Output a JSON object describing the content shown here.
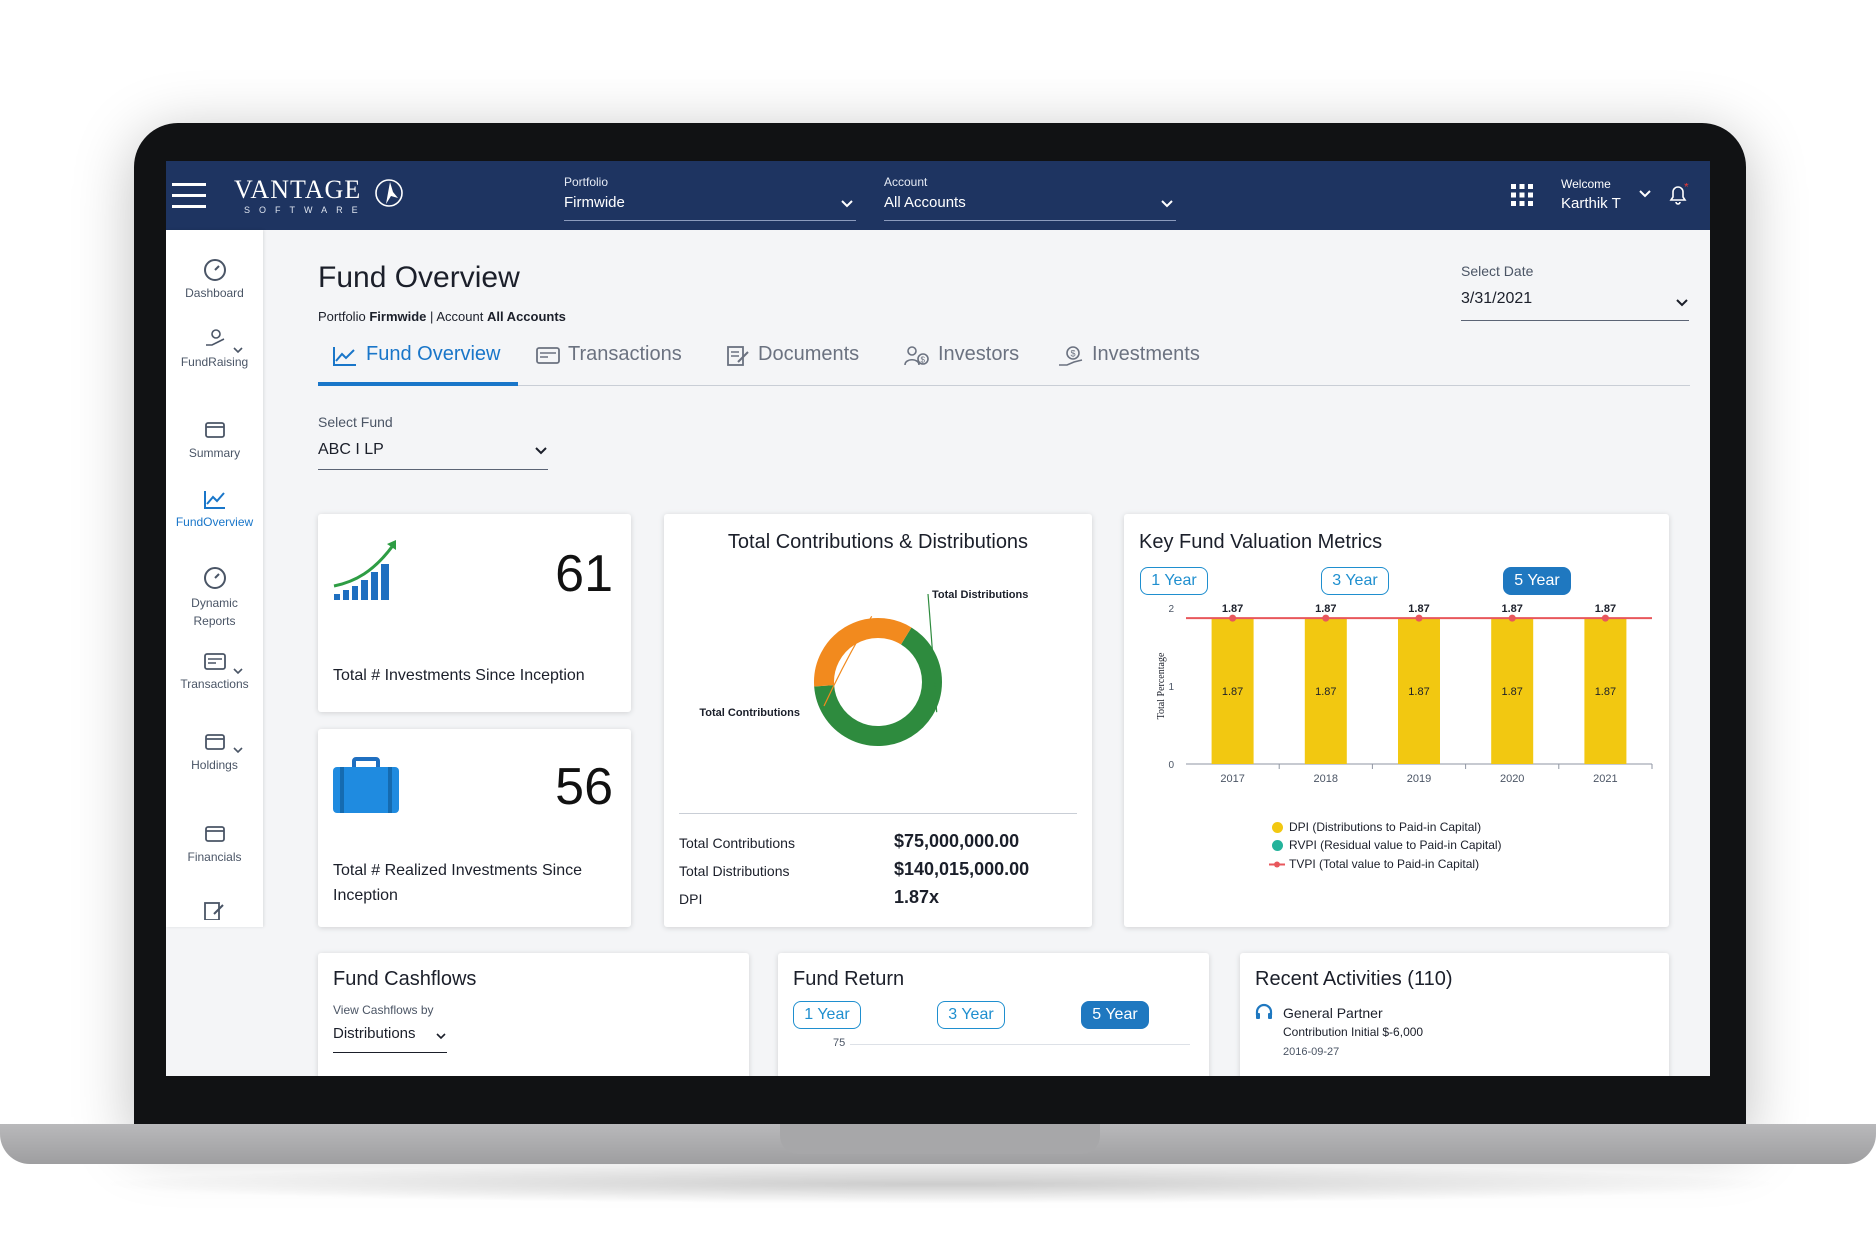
{
  "brand": {
    "name": "VANTAGE",
    "sub": "SOFTWARE"
  },
  "topbar": {
    "portfolio_label": "Portfolio",
    "portfolio_value": "Firmwide",
    "account_label": "Account",
    "account_value": "All Accounts",
    "welcome_label": "Welcome",
    "user_name": "Karthik T"
  },
  "sidebar": {
    "items": [
      {
        "label": "Dashboard",
        "icon": "gauge-icon"
      },
      {
        "label": "FundRaising",
        "icon": "hand-money-icon"
      },
      {
        "label": "Summary",
        "icon": "window-stack-icon"
      },
      {
        "label": "FundOverview",
        "icon": "trend-chart-icon"
      },
      {
        "label": "Dynamic",
        "label2": "Reports",
        "icon": "gauge-icon"
      },
      {
        "label": "Transactions",
        "icon": "card-icon"
      },
      {
        "label": "Holdings",
        "icon": "window-stack-icon"
      },
      {
        "label": "Financials",
        "icon": "window-stack-icon"
      }
    ],
    "active_color": "#1976c9"
  },
  "page": {
    "title": "Fund Overview",
    "crumb_portfolio_label": "Portfolio",
    "crumb_portfolio_value": "Firmwide",
    "crumb_account_label": "Account",
    "crumb_account_value": "All Accounts",
    "select_date_label": "Select Date",
    "select_date_value": "3/31/2021",
    "select_fund_label": "Select Fund",
    "select_fund_value": "ABC I LP"
  },
  "tabs": [
    {
      "label": "Fund Overview",
      "active": true
    },
    {
      "label": "Transactions",
      "active": false
    },
    {
      "label": "Documents",
      "active": false
    },
    {
      "label": "Investors",
      "active": false
    },
    {
      "label": "Investments",
      "active": false
    }
  ],
  "kpis": {
    "investments_count": "61",
    "investments_label": "Total # Investments Since Inception",
    "realized_count": "56",
    "realized_label": "Total # Realized Investments Since Inception"
  },
  "contributions_card": {
    "title": "Total Contributions & Distributions",
    "rows": [
      {
        "label": "Total Contributions",
        "value": "$75,000,000.00"
      },
      {
        "label": "Total Distributions",
        "value": "$140,015,000.00"
      },
      {
        "label": "DPI",
        "value": "1.87x"
      }
    ]
  },
  "donut_chart": {
    "type": "pie",
    "labels": [
      "Total Distributions",
      "Total Contributions"
    ],
    "values": [
      140015000,
      75000000
    ],
    "colors": [
      "#2e8b3e",
      "#f28a1e"
    ]
  },
  "valuation_card": {
    "title": "Key Fund Valuation Metrics",
    "periods": [
      "1 Year",
      "3 Year",
      "5 Year"
    ],
    "active_period": "5 Year"
  },
  "chart_data": {
    "type": "bar",
    "categories": [
      "2017",
      "2018",
      "2019",
      "2020",
      "2021"
    ],
    "series": [
      {
        "name": "DPI (Distributions to Paid-in Capital)",
        "values": [
          1.87,
          1.87,
          1.87,
          1.87,
          1.87
        ],
        "color": "#f2c811"
      },
      {
        "name": "RVPI (Residual value to Paid-in Capital)",
        "values": [
          0,
          0,
          0,
          0,
          0
        ],
        "color": "#24b39b"
      },
      {
        "name": "TVPI (Total value to Paid-in Capital)",
        "values": [
          1.87,
          1.87,
          1.87,
          1.87,
          1.87
        ],
        "color": "#e8575c"
      }
    ],
    "bar_labels": [
      "1.87",
      "1.87",
      "1.87",
      "1.87",
      "1.87"
    ],
    "top_labels": [
      "1.87",
      "1.87",
      "1.87",
      "1.87",
      "1.87"
    ],
    "ylabel": "Total Percentage",
    "ylim": [
      0,
      2
    ],
    "yticks": [
      "0",
      "1",
      "2"
    ],
    "legend": "bottom"
  },
  "cashflows_card": {
    "title": "Fund Cashflows",
    "view_label": "View Cashflows by",
    "view_value": "Distributions"
  },
  "return_card": {
    "title": "Fund Return",
    "periods": [
      "1 Year",
      "3 Year",
      "5 Year"
    ],
    "active_period": "5 Year",
    "first_tick": "75"
  },
  "activities_card": {
    "title": "Recent Activities (110)",
    "item_title": "General Partner",
    "item_detail": "Contribution Initial $-6,000",
    "item_date": "2016-09-27"
  },
  "colors": {
    "topbar": "#1e3461",
    "accent": "#1976c9",
    "pill": "#1f78c0"
  }
}
